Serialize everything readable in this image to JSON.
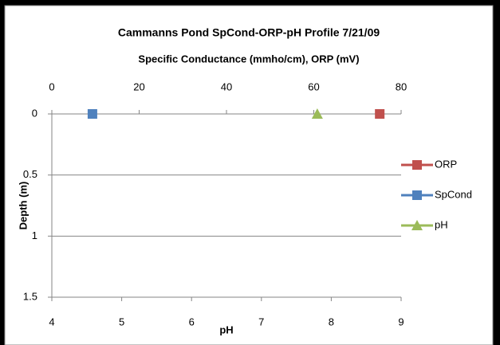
{
  "chart_data": {
    "type": "scatter",
    "title": "Cammanns Pond SpCond-ORP-pH Profile 7/21/09",
    "xlabel": "Specific Conductance (mmho/cm), ORP (mV)",
    "x2label": "pH",
    "ylabel": "Depth (m)",
    "xlim": [
      0,
      80
    ],
    "xticks": [
      0,
      20,
      40,
      60,
      80
    ],
    "x2lim": [
      4,
      9
    ],
    "x2ticks": [
      4,
      5,
      6,
      7,
      8,
      9
    ],
    "ylim": [
      0,
      1.5
    ],
    "yticks": [
      0,
      0.5,
      1,
      1.5
    ],
    "y_inverted": true,
    "grid": true,
    "legend": "right",
    "series": [
      {
        "name": "ORP",
        "color": "#c0504d",
        "marker": "square",
        "x": [
          75.1
        ],
        "values": [
          0
        ]
      },
      {
        "name": "SpCond",
        "color": "#4f81bd",
        "marker": "square",
        "x": [
          9.3
        ],
        "values": [
          0
        ]
      },
      {
        "name": "pH",
        "color": "#9bbb59",
        "marker": "triangle",
        "axis": "x2",
        "x": [
          7.8
        ],
        "values": [
          0
        ]
      }
    ]
  }
}
